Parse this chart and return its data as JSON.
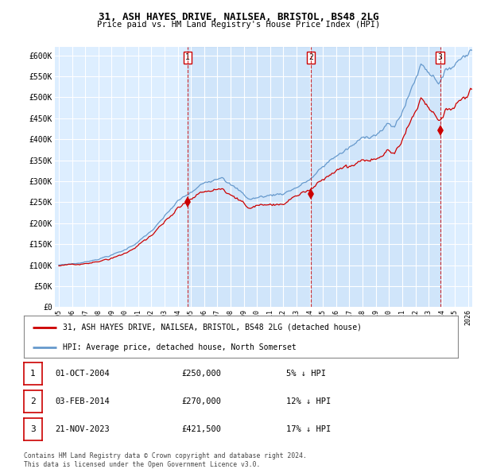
{
  "title": "31, ASH HAYES DRIVE, NAILSEA, BRISTOL, BS48 2LG",
  "subtitle": "Price paid vs. HM Land Registry's House Price Index (HPI)",
  "ylim": [
    0,
    620000
  ],
  "yticks": [
    0,
    50000,
    100000,
    150000,
    200000,
    250000,
    300000,
    350000,
    400000,
    450000,
    500000,
    550000,
    600000
  ],
  "ytick_labels": [
    "£0",
    "£50K",
    "£100K",
    "£150K",
    "£200K",
    "£250K",
    "£300K",
    "£350K",
    "£400K",
    "£450K",
    "£500K",
    "£550K",
    "£600K"
  ],
  "sale_dates_decimal": [
    2004.75,
    2014.083,
    2023.875
  ],
  "sale_prices": [
    250000,
    270000,
    421500
  ],
  "sale_labels": [
    "1",
    "2",
    "3"
  ],
  "vline_color": "#cc0000",
  "sale_marker_color": "#cc0000",
  "hpi_line_color": "#6699cc",
  "price_line_color": "#cc0000",
  "chart_bg_color": "#ddeeff",
  "chart_fill_between_color": "#cce0f0",
  "background_color": "#f0f4f8",
  "legend_items": [
    "31, ASH HAYES DRIVE, NAILSEA, BRISTOL, BS48 2LG (detached house)",
    "HPI: Average price, detached house, North Somerset"
  ],
  "table_rows": [
    {
      "label": "1",
      "date": "01-OCT-2004",
      "price": "£250,000",
      "change": "5% ↓ HPI"
    },
    {
      "label": "2",
      "date": "03-FEB-2014",
      "price": "£270,000",
      "change": "12% ↓ HPI"
    },
    {
      "label": "3",
      "date": "21-NOV-2023",
      "price": "£421,500",
      "change": "17% ↓ HPI"
    }
  ],
  "footer": "Contains HM Land Registry data © Crown copyright and database right 2024.\nThis data is licensed under the Open Government Licence v3.0.",
  "x_start_year": 1995,
  "x_end_year": 2026
}
